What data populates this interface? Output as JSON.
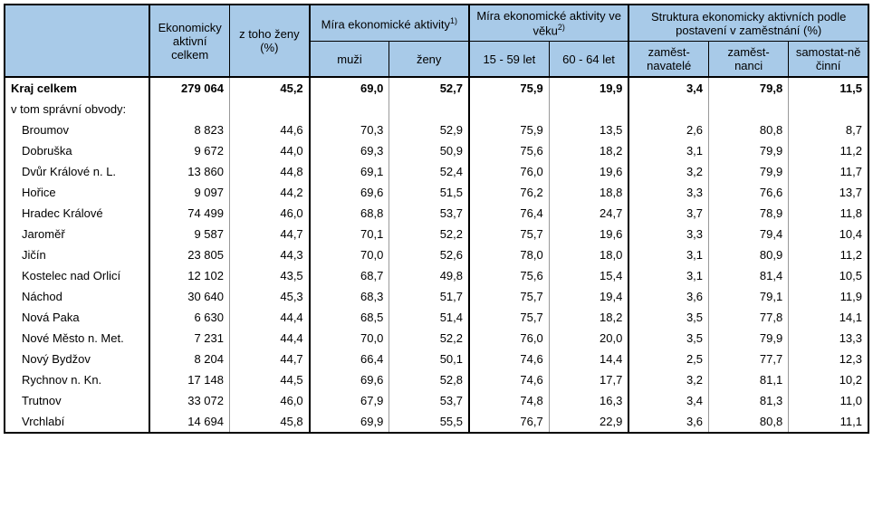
{
  "header": {
    "blank": "",
    "col_total": "Ekonomicky aktivní celkem",
    "col_women": "z toho ženy (%)",
    "group_activity": "Míra ekonomické aktivity",
    "group_activity_sup": "1)",
    "col_men": "muži",
    "col_women2": "ženy",
    "group_age": "Míra ekonomické aktivity ve věku",
    "group_age_sup": "2)",
    "col_age1": "15 - 59 let",
    "col_age2": "60 - 64 let",
    "group_struct": "Struktura ekonomicky aktivních podle postavení v zaměstnání (%)",
    "col_emp": "zaměst-navatelé",
    "col_empl": "zaměst-nanci",
    "col_self": "samostat-ně činní"
  },
  "total_label": "Kraj celkem",
  "sub_label": "v tom správní obvody:",
  "total": {
    "c1": "279 064",
    "c2": "45,2",
    "c3": "69,0",
    "c4": "52,7",
    "c5": "75,9",
    "c6": "19,9",
    "c7": "3,4",
    "c8": "79,8",
    "c9": "11,5"
  },
  "rows": [
    {
      "name": "Broumov",
      "c1": "8 823",
      "c2": "44,6",
      "c3": "70,3",
      "c4": "52,9",
      "c5": "75,9",
      "c6": "13,5",
      "c7": "2,6",
      "c8": "80,8",
      "c9": "8,7"
    },
    {
      "name": "Dobruška",
      "c1": "9 672",
      "c2": "44,0",
      "c3": "69,3",
      "c4": "50,9",
      "c5": "75,6",
      "c6": "18,2",
      "c7": "3,1",
      "c8": "79,9",
      "c9": "11,2"
    },
    {
      "name": "Dvůr Králové n. L.",
      "c1": "13 860",
      "c2": "44,8",
      "c3": "69,1",
      "c4": "52,4",
      "c5": "76,0",
      "c6": "19,6",
      "c7": "3,2",
      "c8": "79,9",
      "c9": "11,7"
    },
    {
      "name": "Hořice",
      "c1": "9 097",
      "c2": "44,2",
      "c3": "69,6",
      "c4": "51,5",
      "c5": "76,2",
      "c6": "18,8",
      "c7": "3,3",
      "c8": "76,6",
      "c9": "13,7"
    },
    {
      "name": "Hradec Králové",
      "c1": "74 499",
      "c2": "46,0",
      "c3": "68,8",
      "c4": "53,7",
      "c5": "76,4",
      "c6": "24,7",
      "c7": "3,7",
      "c8": "78,9",
      "c9": "11,8"
    },
    {
      "name": "Jaroměř",
      "c1": "9 587",
      "c2": "44,7",
      "c3": "70,1",
      "c4": "52,2",
      "c5": "75,7",
      "c6": "19,6",
      "c7": "3,3",
      "c8": "79,4",
      "c9": "10,4"
    },
    {
      "name": "Jičín",
      "c1": "23 805",
      "c2": "44,3",
      "c3": "70,0",
      "c4": "52,6",
      "c5": "78,0",
      "c6": "18,0",
      "c7": "3,1",
      "c8": "80,9",
      "c9": "11,2"
    },
    {
      "name": "Kostelec nad Orlicí",
      "c1": "12 102",
      "c2": "43,5",
      "c3": "68,7",
      "c4": "49,8",
      "c5": "75,6",
      "c6": "15,4",
      "c7": "3,1",
      "c8": "81,4",
      "c9": "10,5"
    },
    {
      "name": "Náchod",
      "c1": "30 640",
      "c2": "45,3",
      "c3": "68,3",
      "c4": "51,7",
      "c5": "75,7",
      "c6": "19,4",
      "c7": "3,6",
      "c8": "79,1",
      "c9": "11,9"
    },
    {
      "name": "Nová Paka",
      "c1": "6 630",
      "c2": "44,4",
      "c3": "68,5",
      "c4": "51,4",
      "c5": "75,7",
      "c6": "18,2",
      "c7": "3,5",
      "c8": "77,8",
      "c9": "14,1"
    },
    {
      "name": "Nové Město n. Met.",
      "c1": "7 231",
      "c2": "44,4",
      "c3": "70,0",
      "c4": "52,2",
      "c5": "76,0",
      "c6": "20,0",
      "c7": "3,5",
      "c8": "79,9",
      "c9": "13,3"
    },
    {
      "name": "Nový Bydžov",
      "c1": "8 204",
      "c2": "44,7",
      "c3": "66,4",
      "c4": "50,1",
      "c5": "74,6",
      "c6": "14,4",
      "c7": "2,5",
      "c8": "77,7",
      "c9": "12,3"
    },
    {
      "name": "Rychnov n. Kn.",
      "c1": "17 148",
      "c2": "44,5",
      "c3": "69,6",
      "c4": "52,8",
      "c5": "74,6",
      "c6": "17,7",
      "c7": "3,2",
      "c8": "81,1",
      "c9": "10,2"
    },
    {
      "name": "Trutnov",
      "c1": "33 072",
      "c2": "46,0",
      "c3": "67,9",
      "c4": "53,7",
      "c5": "74,8",
      "c6": "16,3",
      "c7": "3,4",
      "c8": "81,3",
      "c9": "11,0"
    },
    {
      "name": "Vrchlabí",
      "c1": "14 694",
      "c2": "45,8",
      "c3": "69,9",
      "c4": "55,5",
      "c5": "76,7",
      "c6": "22,9",
      "c7": "3,6",
      "c8": "80,8",
      "c9": "11,1"
    }
  ]
}
